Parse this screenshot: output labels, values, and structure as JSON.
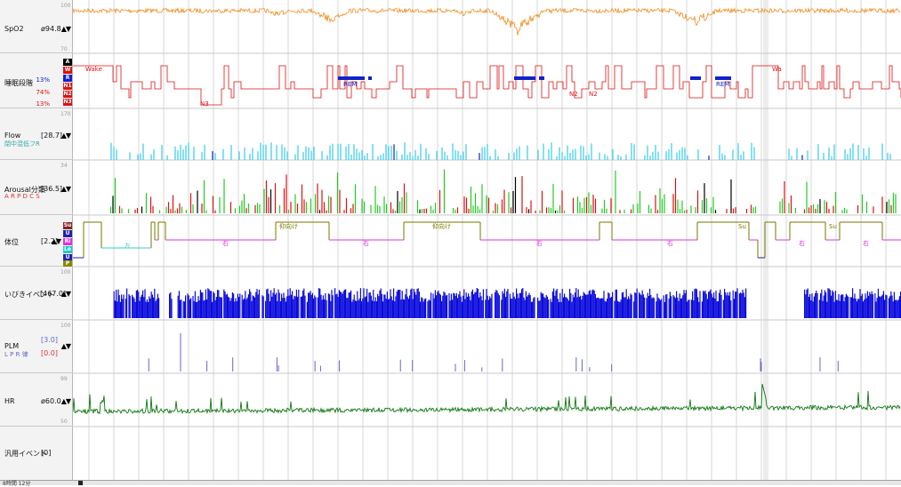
{
  "channels": {
    "spo2": {
      "name": "SpO2",
      "value": "ø94.8",
      "scale_top": "100",
      "scale_bottom": "70"
    },
    "sleep": {
      "name": "睡眠段階",
      "pct_r": "13%",
      "pct_n1": "74%",
      "pct_n2": "13%",
      "codes": [
        "A",
        "W",
        "R",
        "N1",
        "N2",
        "N3"
      ]
    },
    "flow": {
      "name": "Flow",
      "value": "[28.7]",
      "sub": "閉中混低フR",
      "scale_top": "170"
    },
    "arousal": {
      "name": "Arousal分類",
      "value": "[36.5]",
      "sub": "A R P D C S",
      "scale_top": "34"
    },
    "posture": {
      "name": "体位",
      "value": "[2.2]",
      "codes": [
        "Su",
        "U",
        "Ri",
        "Le",
        "U",
        "P"
      ]
    },
    "snore": {
      "name": "いびきイベント",
      "value": "[467.0]",
      "scale_top": "100"
    },
    "plm": {
      "name": "PLM",
      "value1": "[3.0]",
      "value2": "[0.0]",
      "sub": "L P R 律",
      "scale_top": "100"
    },
    "hr": {
      "name": "HR",
      "value": "ø60.0",
      "scale_top": "99",
      "scale_bottom": "50"
    },
    "event": {
      "name": "汎用イベント",
      "value": "[0]"
    }
  },
  "sleep_labels": [
    "Wake",
    "N3",
    "REM",
    "N2",
    "N2",
    "REM",
    "Wa"
  ],
  "posture_labels": [
    "左",
    "仰向け",
    "右",
    "仰向け",
    "右",
    "右",
    "右",
    "Su",
    "右",
    "Su",
    "右"
  ],
  "footer": {
    "time": "8時間 12分"
  },
  "colors": {
    "spo2": "#f08c1e",
    "sleep": "#dd1111",
    "rem": "#1122cc",
    "flow": "#33ccee",
    "arousal_r": "#dd1111",
    "arousal_g": "#22cc22",
    "posture": "#777700",
    "posture_side": "#dd33dd",
    "posture_left": "#33cccc",
    "snore": "#0a0adc",
    "plm": "#6666cc",
    "hr": "#117711"
  }
}
